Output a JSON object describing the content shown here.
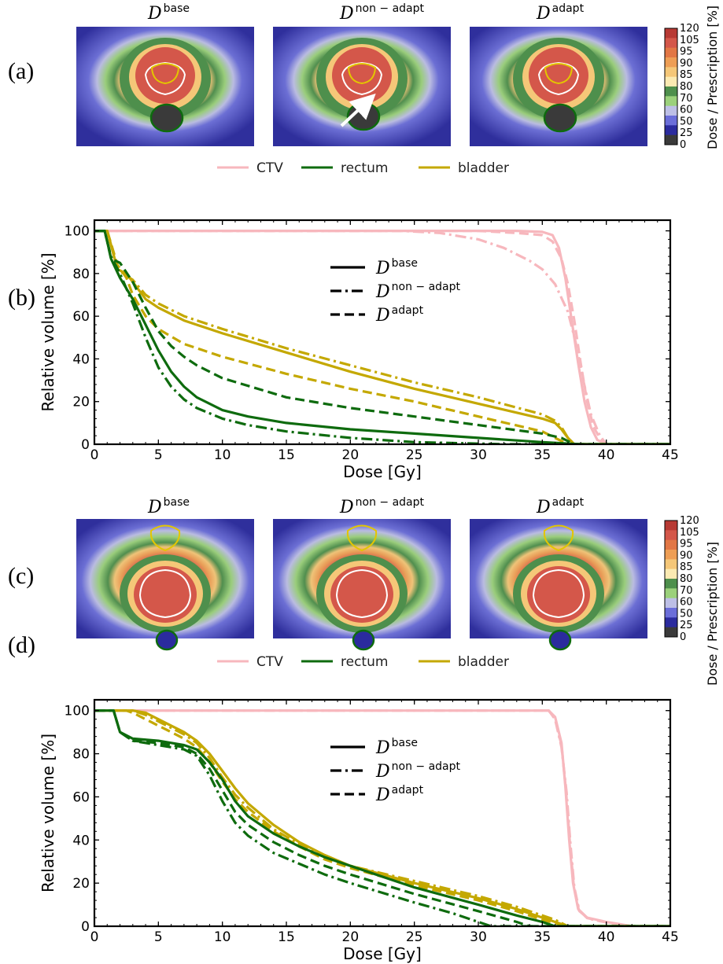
{
  "panel_labels": [
    "(a)",
    "(b)",
    "(c)",
    "(d)"
  ],
  "image_titles": [
    {
      "base": "D",
      "sup": "base"
    },
    {
      "base": "D",
      "sup": "non − adapt"
    },
    {
      "base": "D",
      "sup": "adapt"
    }
  ],
  "colorbar": {
    "label": "Dose / Prescription [%]",
    "ticks": [
      "120",
      "105",
      "95",
      "90",
      "85",
      "80",
      "70",
      "60",
      "50",
      "25",
      "0"
    ],
    "colors": [
      "#b83a34",
      "#d4574a",
      "#e27745",
      "#ee9e55",
      "#f5c778",
      "#fbeab2",
      "#4e8f4c",
      "#9bd17b",
      "#bdbfe6",
      "#6b6ed9",
      "#2b2b9e",
      "#3a3a3a"
    ]
  },
  "structure_legend": [
    {
      "label": "CTV",
      "color": "#f7b7bd"
    },
    {
      "label": "rectum",
      "color": "#0e6b0e"
    },
    {
      "label": "bladder",
      "color": "#c4a800"
    }
  ],
  "plan_legend": [
    {
      "base": "D",
      "sup": "base",
      "dash": "solid"
    },
    {
      "base": "D",
      "sup": "non − adapt",
      "dash": "dashdot"
    },
    {
      "base": "D",
      "sup": "adapt",
      "dash": "dashed"
    }
  ],
  "colors": {
    "CTV": "#f7b7bd",
    "rectum": "#0e6b0e",
    "bladder": "#c4a800"
  },
  "chart_data": [
    {
      "panel": "(b)",
      "type": "line",
      "xlabel": "Dose [Gy]",
      "ylabel": "Relative volume [%]",
      "xlim": [
        0,
        45
      ],
      "ylim": [
        0,
        105
      ],
      "xticks": [
        0,
        5,
        10,
        15,
        20,
        25,
        30,
        35,
        40,
        45
      ],
      "yticks": [
        0,
        20,
        40,
        60,
        80,
        100
      ],
      "series": [
        {
          "structure": "CTV",
          "plan": "base",
          "x": [
            0,
            33,
            35,
            35.8,
            36.3,
            36.8,
            37.3,
            37.8,
            38.3,
            38.8,
            39.3,
            40,
            45
          ],
          "y": [
            100,
            100,
            99.5,
            98,
            92,
            78,
            58,
            38,
            20,
            8,
            2,
            0,
            0
          ]
        },
        {
          "structure": "CTV",
          "plan": "non-adapt",
          "x": [
            0,
            24,
            27,
            30,
            32,
            34,
            35,
            36,
            37,
            37.6,
            38.2,
            38.8,
            39.5,
            40,
            45
          ],
          "y": [
            100,
            100,
            99,
            96,
            92,
            86,
            82,
            75,
            62,
            48,
            30,
            14,
            4,
            0,
            0
          ]
        },
        {
          "structure": "CTV",
          "plan": "adapt",
          "x": [
            0,
            30,
            33,
            35,
            35.8,
            36.5,
            37,
            37.5,
            38,
            38.5,
            39,
            39.6,
            40,
            45
          ],
          "y": [
            100,
            100,
            99,
            98,
            95,
            87,
            75,
            58,
            38,
            20,
            8,
            2,
            0,
            0
          ]
        },
        {
          "structure": "rectum",
          "plan": "base",
          "x": [
            0,
            0.8,
            1,
            1.3,
            2,
            3,
            4,
            5,
            6,
            7,
            8,
            10,
            12,
            15,
            20,
            25,
            30,
            35,
            38,
            45
          ],
          "y": [
            100,
            100,
            95,
            87,
            78,
            68,
            56,
            44,
            34,
            27,
            22,
            16,
            13,
            10,
            7,
            5,
            3,
            1,
            0,
            0
          ]
        },
        {
          "structure": "rectum",
          "plan": "non-adapt",
          "x": [
            0,
            0.8,
            1,
            1.3,
            2,
            3,
            4,
            5,
            6,
            7,
            8,
            10,
            12,
            15,
            20,
            25,
            30,
            32,
            45
          ],
          "y": [
            100,
            100,
            95,
            88,
            80,
            66,
            50,
            36,
            27,
            21,
            17,
            12,
            9,
            6,
            3,
            1,
            0.3,
            0,
            0
          ]
        },
        {
          "structure": "rectum",
          "plan": "adapt",
          "x": [
            0,
            0.8,
            1,
            1.3,
            2,
            3,
            4,
            5,
            6,
            7,
            8,
            10,
            15,
            20,
            25,
            30,
            35,
            36.5,
            37.5,
            45
          ],
          "y": [
            100,
            100,
            95,
            87,
            85,
            76,
            64,
            53,
            46,
            41,
            37,
            31,
            22,
            17,
            13,
            9,
            5,
            3,
            0,
            0
          ]
        },
        {
          "structure": "bladder",
          "plan": "base",
          "x": [
            0,
            1,
            1.8,
            2.5,
            3,
            4,
            5,
            7,
            10,
            15,
            20,
            25,
            30,
            35,
            36,
            36.5,
            37,
            37.5,
            45
          ],
          "y": [
            100,
            100,
            82,
            80,
            76,
            68,
            64,
            58,
            52,
            43,
            34,
            26,
            19,
            12,
            10,
            7,
            3,
            0,
            0
          ]
        },
        {
          "structure": "bladder",
          "plan": "non-adapt",
          "x": [
            0,
            1,
            1.8,
            2.5,
            3,
            4,
            5,
            7,
            10,
            15,
            20,
            25,
            30,
            35,
            36,
            36.5,
            37,
            37.5,
            45
          ],
          "y": [
            100,
            100,
            82,
            79,
            77,
            70,
            66,
            60,
            54,
            45,
            37,
            29,
            22,
            14,
            11,
            8,
            3,
            0,
            0
          ]
        },
        {
          "structure": "bladder",
          "plan": "adapt",
          "x": [
            0,
            1,
            1.8,
            2.5,
            3,
            4,
            5,
            7,
            10,
            15,
            20,
            25,
            30,
            35,
            36,
            37,
            45
          ],
          "y": [
            100,
            100,
            84,
            78,
            70,
            60,
            54,
            47,
            41,
            33,
            26,
            20,
            13,
            6,
            3,
            0,
            0
          ]
        }
      ]
    },
    {
      "panel": "(d)",
      "type": "line",
      "xlabel": "Dose [Gy]",
      "ylabel": "Relative volume [%]",
      "xlim": [
        0,
        45
      ],
      "ylim": [
        0,
        105
      ],
      "xticks": [
        0,
        5,
        10,
        15,
        20,
        25,
        30,
        35,
        40,
        45
      ],
      "yticks": [
        0,
        20,
        40,
        60,
        80,
        100
      ],
      "series": [
        {
          "structure": "CTV",
          "plan": "base",
          "x": [
            0,
            35.5,
            36,
            36.5,
            36.8,
            37.1,
            37.4,
            37.8,
            38.5,
            40,
            42,
            45
          ],
          "y": [
            100,
            100,
            97,
            85,
            65,
            40,
            20,
            8,
            4,
            2,
            0,
            0
          ]
        },
        {
          "structure": "CTV",
          "plan": "non-adapt",
          "x": [
            0,
            35.5,
            36,
            36.5,
            36.9,
            37.2,
            37.5,
            37.9,
            38.6,
            40,
            42,
            45
          ],
          "y": [
            100,
            100,
            96,
            83,
            62,
            38,
            18,
            7,
            3.5,
            1.8,
            0,
            0
          ]
        },
        {
          "structure": "CTV",
          "plan": "adapt",
          "x": [
            0,
            35.5,
            36,
            36.5,
            36.85,
            37.15,
            37.45,
            37.85,
            38.5,
            40,
            42,
            45
          ],
          "y": [
            100,
            100,
            96,
            84,
            63,
            39,
            19,
            7.5,
            3.8,
            1.9,
            0,
            0
          ]
        },
        {
          "structure": "rectum",
          "plan": "base",
          "x": [
            0,
            1.5,
            2,
            3,
            5,
            7,
            8,
            9,
            10,
            11,
            12,
            14,
            16,
            18,
            20,
            25,
            30,
            33,
            35,
            36,
            45
          ],
          "y": [
            100,
            100,
            90,
            87,
            86,
            84,
            82,
            76,
            68,
            58,
            51,
            43,
            37,
            32,
            28,
            18,
            10,
            5,
            2,
            0,
            0
          ]
        },
        {
          "structure": "rectum",
          "plan": "non-adapt",
          "x": [
            0,
            1.5,
            2,
            3,
            5,
            7,
            8,
            9,
            10,
            11,
            12,
            14,
            16,
            18,
            20,
            25,
            28,
            30,
            31,
            45
          ],
          "y": [
            100,
            100,
            90,
            86,
            84,
            82,
            79,
            70,
            58,
            48,
            42,
            34,
            29,
            24,
            20,
            11,
            6,
            2,
            0,
            0
          ]
        },
        {
          "structure": "rectum",
          "plan": "adapt",
          "x": [
            0,
            1.5,
            2,
            3,
            5,
            7,
            8,
            9,
            10,
            11,
            12,
            14,
            16,
            18,
            20,
            25,
            30,
            33,
            34,
            45
          ],
          "y": [
            100,
            100,
            90,
            86,
            85,
            83,
            80,
            73,
            63,
            53,
            47,
            39,
            33,
            28,
            24,
            15,
            7,
            2,
            0,
            0
          ]
        },
        {
          "structure": "bladder",
          "plan": "base",
          "x": [
            0,
            3,
            4,
            5,
            6,
            7,
            8,
            9,
            10,
            11,
            12,
            14,
            16,
            18,
            20,
            25,
            30,
            33,
            35,
            36,
            37,
            45
          ],
          "y": [
            100,
            100,
            99,
            96,
            93,
            90,
            86,
            80,
            72,
            64,
            57,
            47,
            39,
            33,
            28,
            20,
            13,
            8,
            4,
            2,
            0,
            0
          ]
        },
        {
          "structure": "bladder",
          "plan": "non-adapt",
          "x": [
            0,
            3,
            4,
            5,
            6,
            7,
            8,
            9,
            10,
            11,
            12,
            14,
            16,
            18,
            20,
            25,
            30,
            33,
            35,
            36,
            37,
            45
          ],
          "y": [
            100,
            100,
            98,
            95,
            92,
            89,
            85,
            78,
            69,
            61,
            55,
            45,
            38,
            32,
            28,
            21,
            14,
            9,
            5,
            3,
            0,
            0
          ]
        },
        {
          "structure": "bladder",
          "plan": "adapt",
          "x": [
            0,
            2.5,
            3,
            4,
            5,
            6,
            7,
            8,
            9,
            10,
            11,
            12,
            14,
            16,
            18,
            20,
            25,
            30,
            33,
            35,
            36,
            37,
            45
          ],
          "y": [
            100,
            100,
            99,
            96,
            93,
            90,
            87,
            83,
            76,
            67,
            59,
            53,
            44,
            37,
            31,
            27,
            19,
            12,
            7,
            3,
            1.5,
            0,
            0
          ]
        }
      ]
    }
  ]
}
